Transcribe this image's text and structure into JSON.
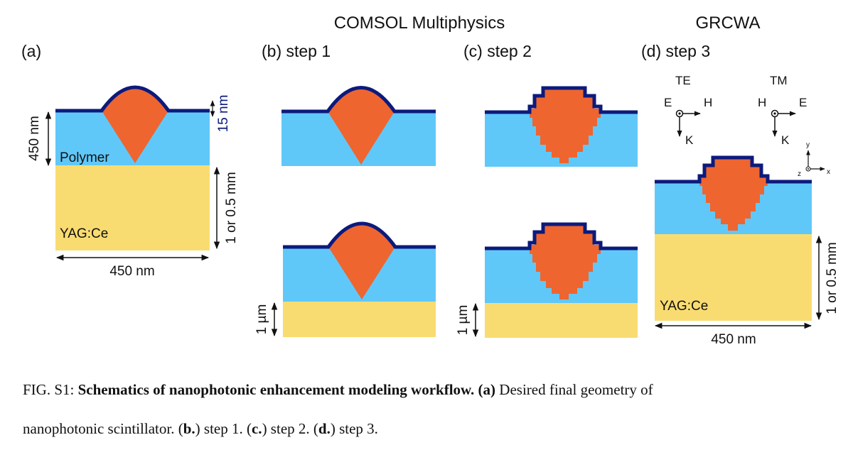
{
  "headers": {
    "comsol": "COMSOL Multiphysics",
    "grcwa": "GRCWA"
  },
  "panels": {
    "a": "(a)",
    "b": "(b) step 1",
    "c": "(c)  step 2",
    "d": "(d) step 3"
  },
  "labels": {
    "polymer": "Polymer",
    "yag": "YAG:Ce",
    "width": "450 nm",
    "height": "450 nm",
    "thin_layer": "15 nm",
    "substrate": "1 or 0.5 mm",
    "micron": "1 µm"
  },
  "polarization": {
    "te": {
      "title": "TE",
      "e": "E",
      "h": "H",
      "k": "K"
    },
    "tm": {
      "title": "TM",
      "h": "H",
      "e": "E",
      "k": "K"
    }
  },
  "axes": {
    "y": "y",
    "z": "z",
    "x": "x"
  },
  "caption": {
    "fig": "FIG. S1:",
    "title": "Schematics of nanophotonic enhancement modeling workflow.",
    "a_tag": "(a)",
    "a_text": "Desired final geometry of",
    "line2_start": "nanophotonic scintillator. (",
    "b_tag": "b.",
    "b_text": ") step 1. (",
    "c_tag": "c.",
    "c_text": ") step 2. (",
    "d_tag": "d.",
    "d_text": ") step 3."
  },
  "colors": {
    "polymer": "#60c8f8",
    "substrate": "#f9dc71",
    "particle": "#ee6530",
    "coating": "#0c1a7c"
  }
}
